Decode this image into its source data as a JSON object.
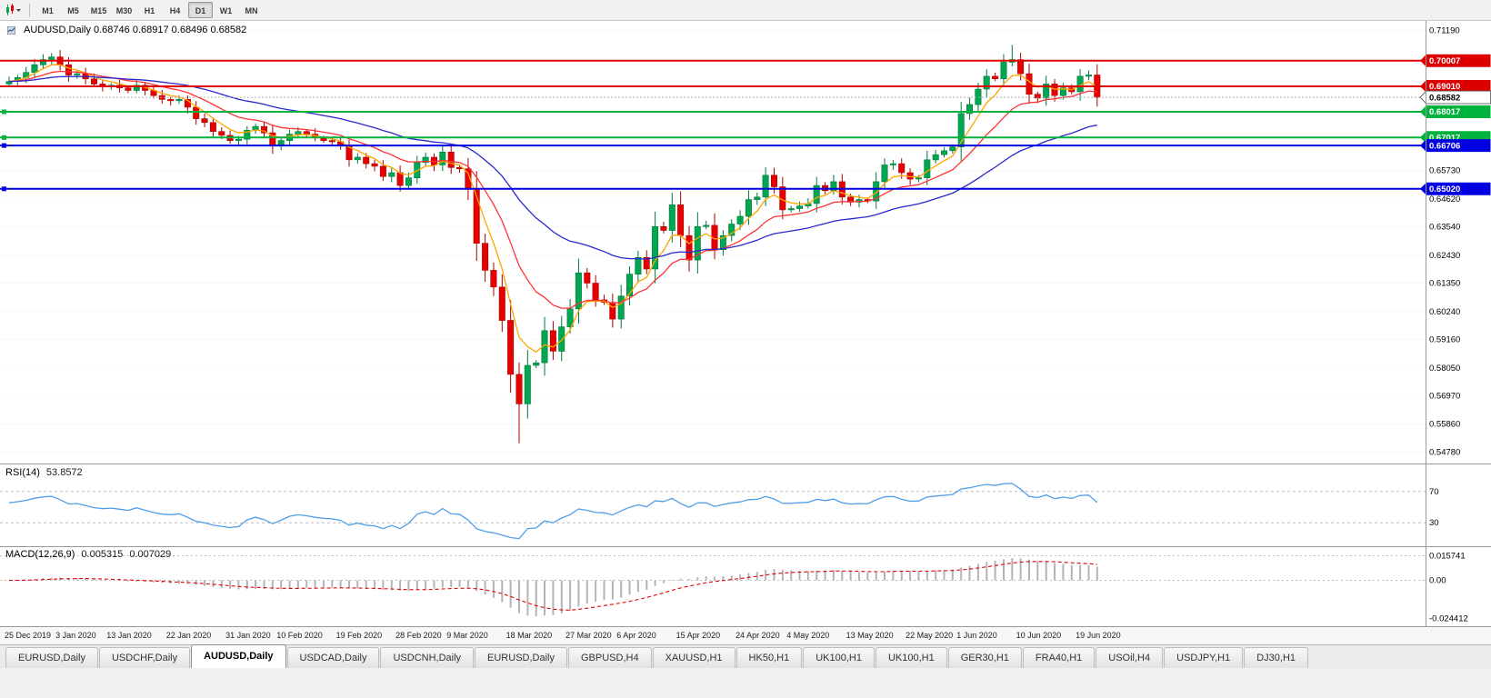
{
  "toolbar": {
    "timeframes": [
      "M1",
      "M5",
      "M15",
      "M30",
      "H1",
      "H4",
      "D1",
      "W1",
      "MN"
    ],
    "active_timeframe": "D1"
  },
  "chart": {
    "title": "AUDUSD,Daily 0.68746 0.68917 0.68496 0.68582",
    "symbol": "AUDUSD,Daily",
    "open": "0.68746",
    "high": "0.68917",
    "low": "0.68496",
    "close": "0.68582"
  },
  "price_axis": {
    "labels": [
      "0.71190",
      "0.65730",
      "0.64620",
      "0.63540",
      "0.62430",
      "0.61350",
      "0.60240",
      "0.59160",
      "0.58050",
      "0.56970",
      "0.55860",
      "0.54780"
    ]
  },
  "hlines": [
    {
      "price": 0.70007,
      "label": "0.70007",
      "color": "#dd0000",
      "type": "resistance"
    },
    {
      "price": 0.6901,
      "label": "0.69010",
      "color": "#dd0000",
      "type": "resistance"
    },
    {
      "price": 0.68017,
      "label": "0.68017",
      "color": "#00b33c",
      "type": "support"
    },
    {
      "price": 0.67017,
      "label": "0.67017",
      "color": "#00b33c",
      "type": "support"
    },
    {
      "price": 0.66706,
      "label": "0.66706",
      "color": "#0000e0",
      "type": "support"
    },
    {
      "price": 0.6502,
      "label": "0.65020",
      "color": "#0000e0",
      "type": "support"
    }
  ],
  "current_price": {
    "label": "0.68582",
    "price": 0.68582
  },
  "rsi": {
    "name": "RSI(14)",
    "value": "53.8572",
    "levels": [
      "70",
      "30"
    ]
  },
  "macd": {
    "name": "MACD(12,26,9)",
    "value1": "0.005315",
    "value2": "0.007029",
    "axis_labels": [
      "0.015741",
      "0.00",
      "-0.024412"
    ]
  },
  "chart_data": {
    "type": "candlestick",
    "symbol": "AUDUSD",
    "timeframe": "Daily",
    "ohlc_display": {
      "open": 0.68746,
      "high": 0.68917,
      "low": 0.68496,
      "close": 0.68582
    },
    "visible_price_range": [
      0.5478,
      0.7152
    ],
    "first_open": 0.691,
    "closes": [
      0.692,
      0.6935,
      0.6955,
      0.6985,
      0.7005,
      0.7015,
      0.6985,
      0.6945,
      0.695,
      0.693,
      0.691,
      0.69,
      0.6905,
      0.6895,
      0.6885,
      0.6905,
      0.6885,
      0.6865,
      0.685,
      0.6845,
      0.685,
      0.682,
      0.6775,
      0.676,
      0.6725,
      0.671,
      0.669,
      0.6695,
      0.673,
      0.6745,
      0.672,
      0.667,
      0.669,
      0.6715,
      0.6725,
      0.6715,
      0.67,
      0.669,
      0.6685,
      0.667,
      0.6615,
      0.6625,
      0.66,
      0.659,
      0.655,
      0.6565,
      0.6515,
      0.6545,
      0.6605,
      0.6625,
      0.6595,
      0.6645,
      0.6585,
      0.658,
      0.65,
      0.629,
      0.6185,
      0.612,
      0.599,
      0.578,
      0.5665,
      0.5815,
      0.5825,
      0.595,
      0.587,
      0.5965,
      0.6035,
      0.6175,
      0.6135,
      0.607,
      0.606,
      0.5995,
      0.6085,
      0.617,
      0.6235,
      0.619,
      0.6355,
      0.634,
      0.644,
      0.632,
      0.6225,
      0.6355,
      0.636,
      0.6265,
      0.632,
      0.6365,
      0.6395,
      0.646,
      0.647,
      0.6555,
      0.651,
      0.642,
      0.6425,
      0.6435,
      0.6445,
      0.6515,
      0.6495,
      0.653,
      0.647,
      0.645,
      0.646,
      0.6455,
      0.653,
      0.6595,
      0.66,
      0.6565,
      0.654,
      0.6545,
      0.6615,
      0.6635,
      0.665,
      0.6665,
      0.6795,
      0.683,
      0.689,
      0.694,
      0.693,
      0.6995,
      0.7005,
      0.695,
      0.687,
      0.6855,
      0.691,
      0.6865,
      0.6895,
      0.688,
      0.694,
      0.6945,
      0.68582
    ],
    "wick_overrides": [
      {
        "index": 60,
        "low": 0.5512
      },
      {
        "index": 118,
        "high": 0.7062
      }
    ],
    "date_labels": [
      {
        "i": 0,
        "t": "25 Dec 2019"
      },
      {
        "i": 6,
        "t": "3 Jan 2020"
      },
      {
        "i": 12,
        "t": "13 Jan 2020"
      },
      {
        "i": 19,
        "t": "22 Jan 2020"
      },
      {
        "i": 26,
        "t": "31 Jan 2020"
      },
      {
        "i": 32,
        "t": "10 Feb 2020"
      },
      {
        "i": 39,
        "t": "19 Feb 2020"
      },
      {
        "i": 46,
        "t": "28 Feb 2020"
      },
      {
        "i": 52,
        "t": "9 Mar 2020"
      },
      {
        "i": 59,
        "t": "18 Mar 2020"
      },
      {
        "i": 66,
        "t": "27 Mar 2020"
      },
      {
        "i": 72,
        "t": "6 Apr 2020"
      },
      {
        "i": 79,
        "t": "15 Apr 2020"
      },
      {
        "i": 86,
        "t": "24 Apr 2020"
      },
      {
        "i": 92,
        "t": "4 May 2020"
      },
      {
        "i": 99,
        "t": "13 May 2020"
      },
      {
        "i": 106,
        "t": "22 May 2020"
      },
      {
        "i": 112,
        "t": "1 Jun 2020"
      },
      {
        "i": 119,
        "t": "10 Jun 2020"
      },
      {
        "i": 126,
        "t": "19 Jun 2020"
      }
    ],
    "moving_averages": [
      {
        "period": 5,
        "color": "#ffa500",
        "method": "ema",
        "name": "fast-ma"
      },
      {
        "period": 13,
        "color": "#ff3333",
        "method": "ema",
        "name": "medium-ma"
      },
      {
        "period": 34,
        "color": "#2929cc",
        "method": "ema",
        "name": "slow-ma"
      }
    ],
    "colors": {
      "up": "#00a650",
      "up_border": "#00炭7a3b",
      "down": "#e60000",
      "down_border": "#aa0000",
      "rsi_line": "#4f9fe8",
      "macd_bar_border": "#b4b4b4",
      "macd_signal": "#e60000"
    }
  },
  "tabs": [
    {
      "label": "EURUSD,Daily",
      "active": false
    },
    {
      "label": "USDCHF,Daily",
      "active": false
    },
    {
      "label": "AUDUSD,Daily",
      "active": true
    },
    {
      "label": "USDCAD,Daily",
      "active": false
    },
    {
      "label": "USDCNH,Daily",
      "active": false
    },
    {
      "label": "EURUSD,Daily",
      "active": false
    },
    {
      "label": "GBPUSD,H4",
      "active": false
    },
    {
      "label": "XAUUSD,H1",
      "active": false
    },
    {
      "label": "HK50,H1",
      "active": false
    },
    {
      "label": "UK100,H1",
      "active": false
    },
    {
      "label": "UK100,H1",
      "active": false
    },
    {
      "label": "GER30,H1",
      "active": false
    },
    {
      "label": "FRA40,H1",
      "active": false
    },
    {
      "label": "USOil,H4",
      "active": false
    },
    {
      "label": "USDJPY,H1",
      "active": false
    },
    {
      "label": "DJ30,H1",
      "active": false
    }
  ]
}
